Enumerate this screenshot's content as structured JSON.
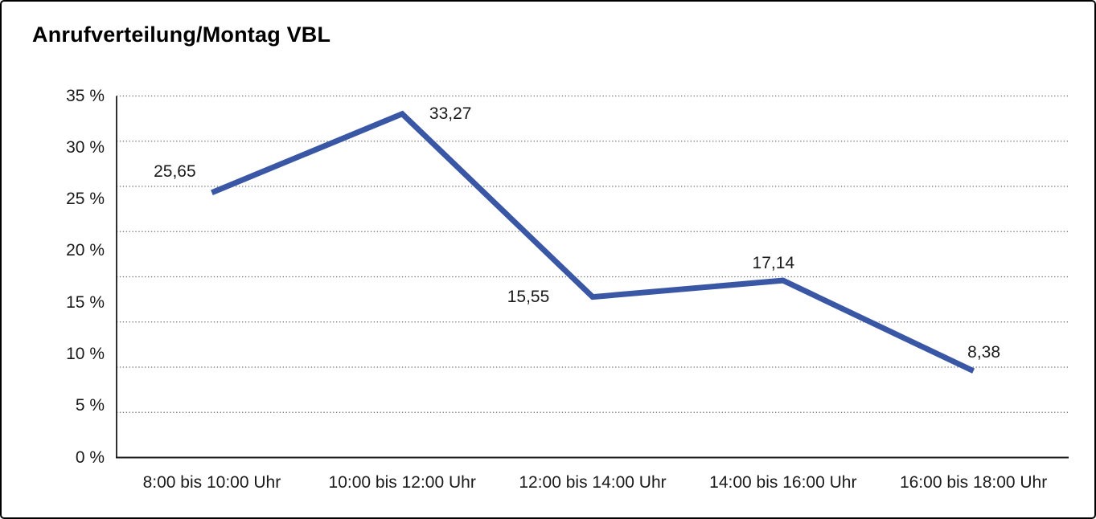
{
  "window": {
    "background": "#ffffff",
    "border_color": "#000000"
  },
  "chart_data": {
    "type": "line",
    "title": "Anrufverteilung/Montag VBL",
    "categories": [
      "8:00 bis 10:00 Uhr",
      "10:00 bis 12:00 Uhr",
      "12:00 bis 14:00 Uhr",
      "14:00 bis 16:00 Uhr",
      "16:00 bis 18:00 Uhr"
    ],
    "values": [
      25.65,
      33.27,
      15.55,
      17.14,
      8.38
    ],
    "data_labels": [
      "25,65",
      "33,27",
      "15,55",
      "17,14",
      "8,38"
    ],
    "y_tick_labels": [
      "35 %",
      "30 %",
      "25 %",
      "20 %",
      "15 %",
      "10 %",
      "5 %",
      "0 %"
    ],
    "ylim": [
      0,
      35
    ],
    "y_tick_step": 5,
    "grid_divisions": 8,
    "gridline_style": "dotted-horizontal",
    "gridline_color": "#6b6b6b",
    "axis_color": "#1a1a1a",
    "line_color": "#3A57A5",
    "label_color": "#1a1a1a",
    "legend": "none",
    "xlabel": "",
    "ylabel": ""
  }
}
